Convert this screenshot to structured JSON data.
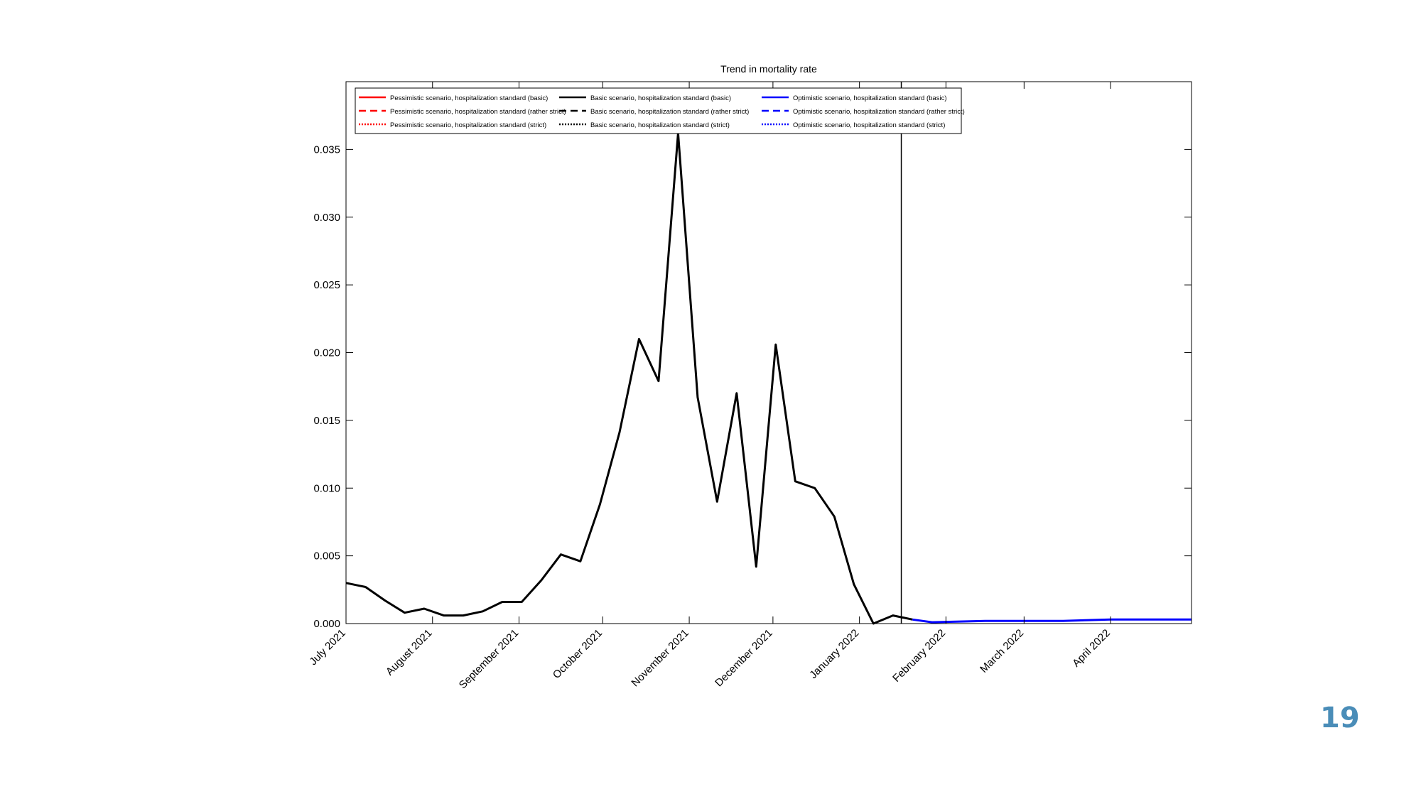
{
  "slide": {
    "page_number": "19"
  },
  "chart_data": {
    "type": "line",
    "title": "Trend in mortality rate",
    "xlabel": "",
    "ylabel": "",
    "x_axis": "date",
    "xlim": [
      "2021-07-01",
      "2022-04-30"
    ],
    "ylim": [
      0,
      0.04
    ],
    "yticks": [
      0.0,
      0.005,
      0.01,
      0.015,
      0.02,
      0.025,
      0.03,
      0.035
    ],
    "ytick_labels": [
      "0.000",
      "0.005",
      "0.010",
      "0.015",
      "0.020",
      "0.025",
      "0.030",
      "0.035"
    ],
    "xticks": [
      {
        "date": "2021-07-01",
        "label": "July 2021"
      },
      {
        "date": "2021-08-01",
        "label": "August 2021"
      },
      {
        "date": "2021-09-01",
        "label": "September 2021"
      },
      {
        "date": "2021-10-01",
        "label": "October 2021"
      },
      {
        "date": "2021-11-01",
        "label": "November 2021"
      },
      {
        "date": "2021-12-01",
        "label": "December 2021"
      },
      {
        "date": "2022-01-01",
        "label": "January 2022"
      },
      {
        "date": "2022-02-01",
        "label": "February 2022"
      },
      {
        "date": "2022-03-01",
        "label": "March 2022"
      },
      {
        "date": "2022-04-01",
        "label": "April 2022"
      }
    ],
    "vertical_line": "2022-01-16",
    "grid": false,
    "legend_position": "top-left",
    "colors": {
      "pessimistic": "#ff0000",
      "basic": "#000000",
      "optimistic": "#0000ff",
      "axis": "#000000"
    },
    "legend": [
      [
        {
          "label": "Pessimistic scenario, hospitalization standard (basic)",
          "color": "#ff0000",
          "dash": "solid"
        },
        {
          "label": "Pessimistic scenario, hospitalization standard (rather strict)",
          "color": "#ff0000",
          "dash": "dashed"
        },
        {
          "label": "Pessimistic scenario, hospitalization standard (strict)",
          "color": "#ff0000",
          "dash": "dotted"
        }
      ],
      [
        {
          "label": "Basic scenario, hospitalization standard (basic)",
          "color": "#000000",
          "dash": "solid"
        },
        {
          "label": "Basic scenario, hospitalization standard (rather strict)",
          "color": "#000000",
          "dash": "dashed"
        },
        {
          "label": "Basic scenario, hospitalization standard (strict)",
          "color": "#000000",
          "dash": "dotted"
        }
      ],
      [
        {
          "label": "Optimistic scenario, hospitalization standard (basic)",
          "color": "#0000ff",
          "dash": "solid"
        },
        {
          "label": "Optimistic scenario, hospitalization standard (rather strict)",
          "color": "#0000ff",
          "dash": "dashed"
        },
        {
          "label": "Optimistic scenario, hospitalization standard (strict)",
          "color": "#0000ff",
          "dash": "dotted"
        }
      ]
    ],
    "series": [
      {
        "color": "#000000",
        "dash": "solid",
        "points": [
          [
            "2021-07-01",
            0.003
          ],
          [
            "2021-07-08",
            0.0027
          ],
          [
            "2021-07-15",
            0.0017
          ],
          [
            "2021-07-22",
            0.0008
          ],
          [
            "2021-07-29",
            0.0011
          ],
          [
            "2021-08-05",
            0.0006
          ],
          [
            "2021-08-12",
            0.0006
          ],
          [
            "2021-08-19",
            0.0009
          ],
          [
            "2021-08-26",
            0.0016
          ],
          [
            "2021-09-02",
            0.0016
          ],
          [
            "2021-09-09",
            0.0032
          ],
          [
            "2021-09-16",
            0.0051
          ],
          [
            "2021-09-23",
            0.0046
          ],
          [
            "2021-09-30",
            0.0088
          ],
          [
            "2021-10-07",
            0.0141
          ],
          [
            "2021-10-14",
            0.021
          ],
          [
            "2021-10-21",
            0.0179
          ],
          [
            "2021-10-28",
            0.0362
          ],
          [
            "2021-11-04",
            0.0167
          ],
          [
            "2021-11-11",
            0.009
          ],
          [
            "2021-11-18",
            0.017
          ],
          [
            "2021-11-25",
            0.0042
          ],
          [
            "2021-12-02",
            0.0206
          ],
          [
            "2021-12-09",
            0.0105
          ],
          [
            "2021-12-16",
            0.01
          ],
          [
            "2021-12-23",
            0.0079
          ],
          [
            "2021-12-30",
            0.0029
          ],
          [
            "2022-01-06",
            0.0
          ],
          [
            "2022-01-13",
            0.0006
          ],
          [
            "2022-01-20",
            0.0003
          ]
        ]
      },
      {
        "color": "#0000ff",
        "dash": "solid",
        "points": [
          [
            "2022-01-20",
            0.0003
          ],
          [
            "2022-01-27",
            0.0001
          ],
          [
            "2022-02-15",
            0.0002
          ],
          [
            "2022-03-15",
            0.0002
          ],
          [
            "2022-04-01",
            0.0003
          ],
          [
            "2022-04-30",
            0.0003
          ]
        ]
      }
    ]
  }
}
